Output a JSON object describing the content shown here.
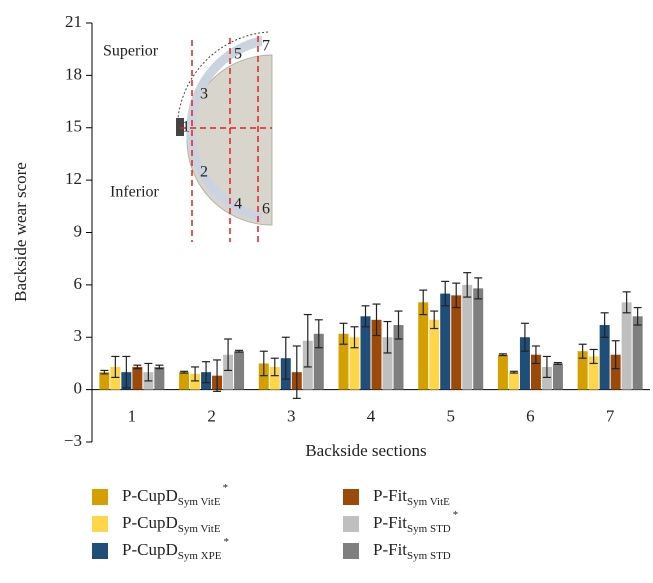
{
  "chart_data": {
    "type": "bar",
    "xlabel": "Backside sections",
    "ylabel": "Backside wear score",
    "categories": [
      "1",
      "2",
      "3",
      "4",
      "5",
      "6",
      "7"
    ],
    "ylim": [
      -3,
      21
    ],
    "yticks": [
      {
        "value": -3,
        "label": "−3"
      },
      0,
      3,
      6,
      9,
      12,
      15,
      18,
      21
    ],
    "series": [
      {
        "name": "P-CupD",
        "name_sub": "Sym VitE",
        "name_sup": "*",
        "color": "#d4a000",
        "values": [
          1.0,
          1.0,
          1.5,
          3.2,
          5.0,
          2.0,
          2.2
        ],
        "errors": [
          0.1,
          0.05,
          0.7,
          0.6,
          0.7,
          0.05,
          0.4
        ]
      },
      {
        "name": "P-CupD",
        "name_sub": "Sym VitE",
        "color": "#ffd54a",
        "values": [
          1.3,
          0.9,
          1.3,
          3.0,
          4.0,
          1.0,
          1.9
        ],
        "errors": [
          0.6,
          0.4,
          0.5,
          0.6,
          0.5,
          0.05,
          0.4
        ]
      },
      {
        "name": "P-CupD",
        "name_sub": "Sym XPE",
        "name_sup": "*",
        "color": "#1f4e79",
        "values": [
          1.0,
          1.0,
          1.8,
          4.2,
          5.5,
          3.0,
          3.7
        ],
        "errors": [
          0.9,
          0.6,
          1.2,
          0.6,
          0.7,
          0.8,
          0.7
        ]
      },
      {
        "name": "P-Fit",
        "name_sub": "Sym VitE",
        "color": "#9c4a0a",
        "values": [
          1.3,
          0.8,
          1.0,
          4.0,
          5.4,
          2.0,
          2.0
        ],
        "errors": [
          0.1,
          0.9,
          1.5,
          0.9,
          0.7,
          0.5,
          0.8
        ]
      },
      {
        "name": "P-Fit",
        "name_sub": "Sym STD",
        "name_sup": "*",
        "color": "#bfbfbf",
        "values": [
          1.0,
          2.0,
          2.8,
          3.0,
          6.0,
          1.3,
          5.0
        ],
        "errors": [
          0.5,
          0.9,
          1.5,
          0.9,
          0.7,
          0.6,
          0.6
        ]
      },
      {
        "name": "P-Fit",
        "name_sub": "Sym STD",
        "color": "#7f7f7f",
        "values": [
          1.3,
          2.2,
          3.2,
          3.7,
          5.8,
          1.5,
          4.2
        ],
        "errors": [
          0.1,
          0.05,
          0.8,
          0.8,
          0.6,
          0.05,
          0.5
        ]
      }
    ]
  },
  "inset": {
    "superior": "Superior",
    "inferior": "Inferior",
    "sections": [
      "1",
      "2",
      "3",
      "4",
      "5",
      "6",
      "7"
    ]
  }
}
